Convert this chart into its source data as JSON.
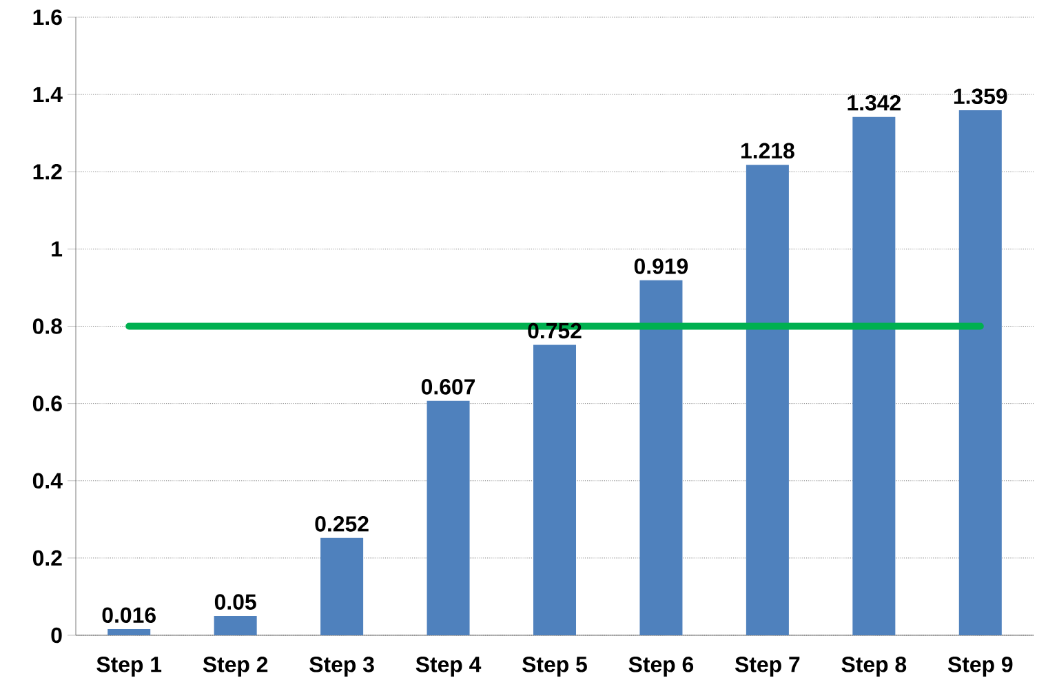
{
  "chart_data": {
    "type": "bar",
    "categories": [
      "Step 1",
      "Step 2",
      "Step 3",
      "Step 4",
      "Step 5",
      "Step 6",
      "Step 7",
      "Step 8",
      "Step 9"
    ],
    "series": [
      {
        "color": "#4f81bd",
        "values": [
          0.016,
          0.05,
          0.252,
          0.607,
          0.752,
          0.919,
          1.218,
          1.342,
          1.359
        ],
        "value_labels": [
          "0.016",
          "0.05",
          "0.252",
          "0.607",
          "0.752",
          "0.919",
          "1.218",
          "1.342",
          "1.359"
        ]
      },
      {
        "type": "line",
        "color": "#00b050",
        "values": [
          0.8,
          0.8,
          0.8,
          0.8,
          0.8,
          0.8,
          0.8,
          0.8,
          0.8
        ]
      }
    ],
    "ylim": [
      0,
      1.6
    ],
    "yticks": [
      0,
      0.2,
      0.4,
      0.6,
      0.8,
      1,
      1.2,
      1.4,
      1.6
    ],
    "grid": "y"
  }
}
